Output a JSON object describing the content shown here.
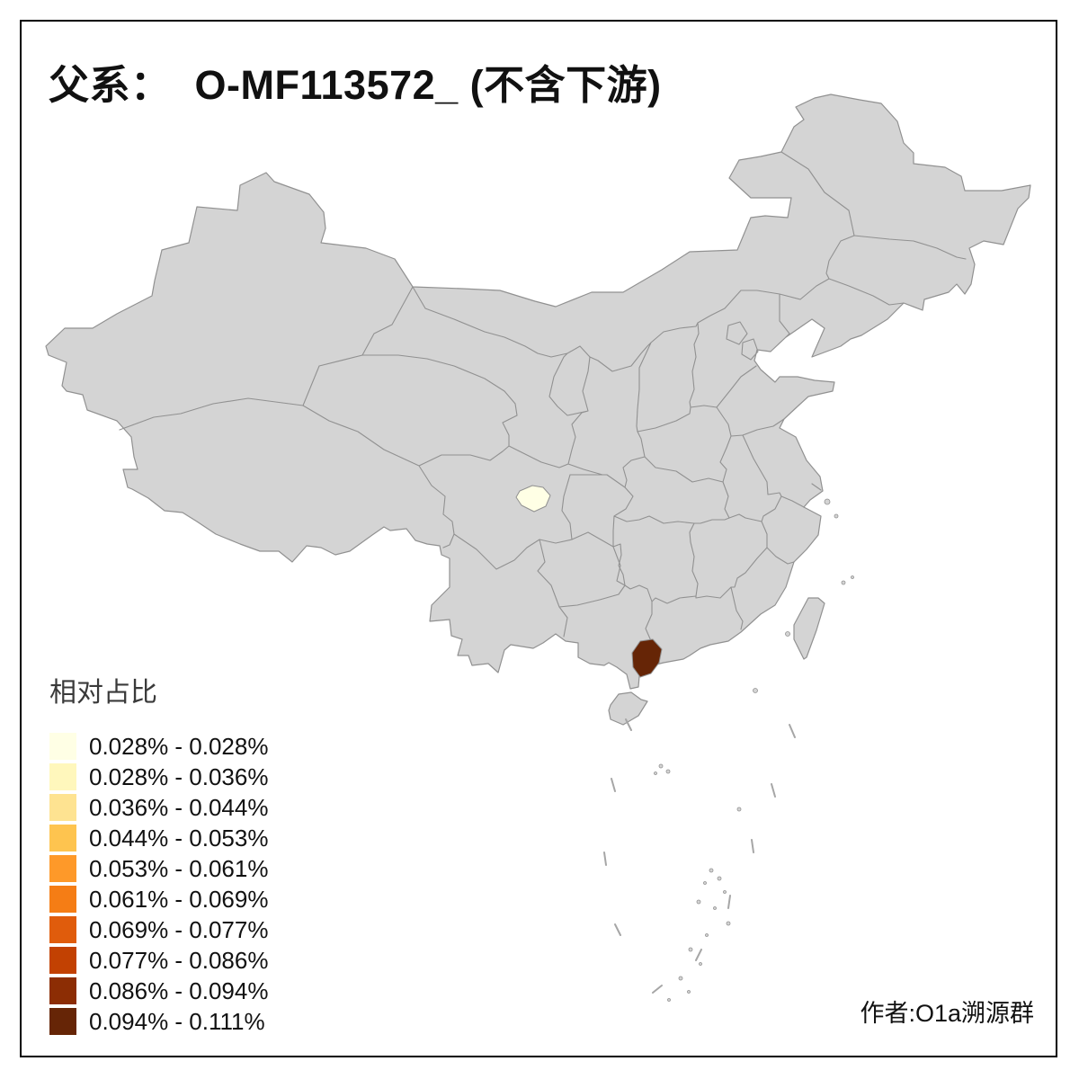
{
  "title": {
    "text": "父系：  O-MF113572_ (不含下游)"
  },
  "legend": {
    "title": "相对占比",
    "items": [
      {
        "label": "0.028% - 0.028%",
        "color": "#FFFFE5"
      },
      {
        "label": "0.028% - 0.036%",
        "color": "#FFF7BC"
      },
      {
        "label": "0.036% - 0.044%",
        "color": "#FEE391"
      },
      {
        "label": "0.044% - 0.053%",
        "color": "#FEC44F"
      },
      {
        "label": "0.053% - 0.061%",
        "color": "#FE9929"
      },
      {
        "label": "0.061% - 0.069%",
        "color": "#F57D15"
      },
      {
        "label": "0.069% - 0.077%",
        "color": "#E05C0C"
      },
      {
        "label": "0.077% - 0.086%",
        "color": "#C24102"
      },
      {
        "label": "0.086% - 0.094%",
        "color": "#8C2D04"
      },
      {
        "label": "0.094% - 0.111%",
        "color": "#662506"
      }
    ]
  },
  "attribution": {
    "text": "作者:O1a溯源群"
  },
  "map": {
    "land_fill": "#d4d4d4",
    "border_color": "#919191",
    "background": "#ffffff",
    "frame_color": "#000000",
    "highlights": [
      {
        "name": "sichuan-basin-region",
        "value_bin": "0.028% - 0.028%",
        "color": "#FFFFE5"
      },
      {
        "name": "west-guangdong-region",
        "value_bin": "0.094% - 0.111%",
        "color": "#662506"
      }
    ]
  }
}
